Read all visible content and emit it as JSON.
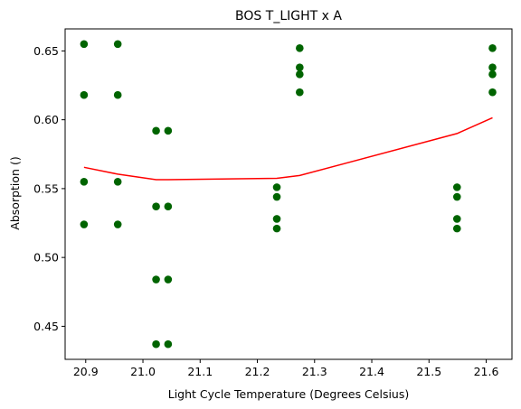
{
  "chart_data": {
    "type": "scatter",
    "title": "BOS T_LIGHT x A",
    "xlabel": "Light Cycle Temperature (Degrees Celsius)",
    "ylabel": "Absorption ()",
    "xlim": [
      20.864,
      21.645
    ],
    "ylim": [
      0.426,
      0.666
    ],
    "xticks": [
      20.9,
      21.0,
      21.1,
      21.2,
      21.3,
      21.4,
      21.5,
      21.6
    ],
    "xtick_labels": [
      "20.9",
      "21.0",
      "21.1",
      "21.2",
      "21.3",
      "21.4",
      "21.5",
      "21.6"
    ],
    "yticks": [
      0.45,
      0.5,
      0.55,
      0.6,
      0.65
    ],
    "ytick_labels": [
      "0.45",
      "0.50",
      "0.55",
      "0.60",
      "0.65"
    ],
    "grid": false,
    "legend": "none",
    "series": [
      {
        "type": "scatter",
        "color": "#006400",
        "points": [
          [
            20.897,
            0.655
          ],
          [
            20.897,
            0.618
          ],
          [
            20.897,
            0.555
          ],
          [
            20.897,
            0.524
          ],
          [
            20.956,
            0.655
          ],
          [
            20.956,
            0.618
          ],
          [
            20.956,
            0.555
          ],
          [
            20.956,
            0.524
          ],
          [
            21.023,
            0.592
          ],
          [
            21.023,
            0.537
          ],
          [
            21.023,
            0.484
          ],
          [
            21.023,
            0.437
          ],
          [
            21.044,
            0.592
          ],
          [
            21.044,
            0.537
          ],
          [
            21.044,
            0.484
          ],
          [
            21.044,
            0.437
          ],
          [
            21.234,
            0.551
          ],
          [
            21.234,
            0.544
          ],
          [
            21.234,
            0.528
          ],
          [
            21.234,
            0.521
          ],
          [
            21.274,
            0.652
          ],
          [
            21.274,
            0.638
          ],
          [
            21.274,
            0.633
          ],
          [
            21.274,
            0.62
          ],
          [
            21.549,
            0.551
          ],
          [
            21.549,
            0.544
          ],
          [
            21.549,
            0.528
          ],
          [
            21.549,
            0.521
          ],
          [
            21.611,
            0.652
          ],
          [
            21.611,
            0.638
          ],
          [
            21.611,
            0.633
          ],
          [
            21.611,
            0.62
          ]
        ]
      },
      {
        "type": "line",
        "color": "#ff0000",
        "points": [
          [
            20.897,
            0.5655
          ],
          [
            20.956,
            0.5605
          ],
          [
            21.023,
            0.5565
          ],
          [
            21.044,
            0.5565
          ],
          [
            21.234,
            0.5575
          ],
          [
            21.274,
            0.5595
          ],
          [
            21.549,
            0.59
          ],
          [
            21.611,
            0.6015
          ]
        ]
      }
    ]
  }
}
